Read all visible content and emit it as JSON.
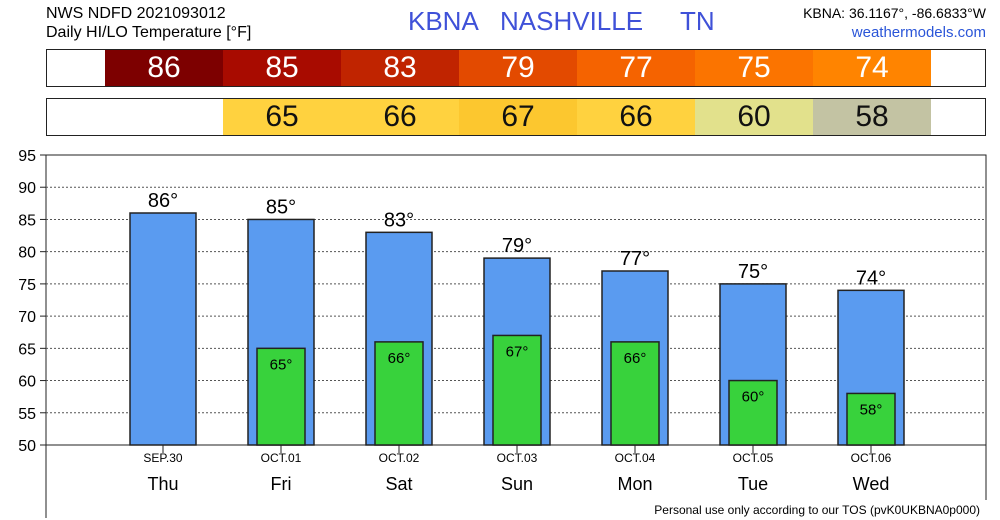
{
  "header": {
    "model_line": "NWS NDFD 2021093012",
    "product_line": "Daily HI/LO Temperature [°F]",
    "station_id": "KBNA",
    "city": "NASHVILLE",
    "state": "TN",
    "coords": "KBNA: 36.1167°, -86.6833°W",
    "site": "weathermodels.com"
  },
  "strips": {
    "high": [
      {
        "label": "86",
        "color": "#7d0000"
      },
      {
        "label": "85",
        "color": "#a80b00"
      },
      {
        "label": "83",
        "color": "#c02400"
      },
      {
        "label": "79",
        "color": "#e34a00"
      },
      {
        "label": "77",
        "color": "#f56300"
      },
      {
        "label": "75",
        "color": "#fb7400"
      },
      {
        "label": "74",
        "color": "#ff8400"
      }
    ],
    "low": [
      {
        "label": "",
        "color": ""
      },
      {
        "label": "65",
        "color": "#ffd23f"
      },
      {
        "label": "66",
        "color": "#ffd23f"
      },
      {
        "label": "67",
        "color": "#fcc72f"
      },
      {
        "label": "66",
        "color": "#ffd23f"
      },
      {
        "label": "60",
        "color": "#e2e18c"
      },
      {
        "label": "58",
        "color": "#c3c3a3"
      }
    ]
  },
  "chart_data": {
    "type": "bar",
    "categories": [
      "Thu",
      "Fri",
      "Sat",
      "Sun",
      "Mon",
      "Tue",
      "Wed"
    ],
    "dates": [
      "SEP.30",
      "OCT.01",
      "OCT.02",
      "OCT.03",
      "OCT.04",
      "OCT.05",
      "OCT.06"
    ],
    "series": [
      {
        "values": [
          86,
          85,
          83,
          79,
          77,
          75,
          74
        ],
        "color": "#5a9bf0"
      },
      {
        "values": [
          null,
          65,
          66,
          67,
          66,
          60,
          58
        ],
        "color": "#38d23c"
      }
    ],
    "high_labels": [
      "86°",
      "85°",
      "83°",
      "79°",
      "77°",
      "75°",
      "74°"
    ],
    "low_labels": [
      "",
      "65°",
      "66°",
      "67°",
      "66°",
      "60°",
      "58°"
    ],
    "yticks": [
      "95",
      "90",
      "85",
      "80",
      "75",
      "70",
      "65",
      "60",
      "55",
      "50"
    ],
    "ylim": [
      50,
      95
    ],
    "grid": true,
    "xlabel": "",
    "ylabel": ""
  },
  "footer": "Personal use only according to our TOS (pvK0UKBNA0p000)"
}
